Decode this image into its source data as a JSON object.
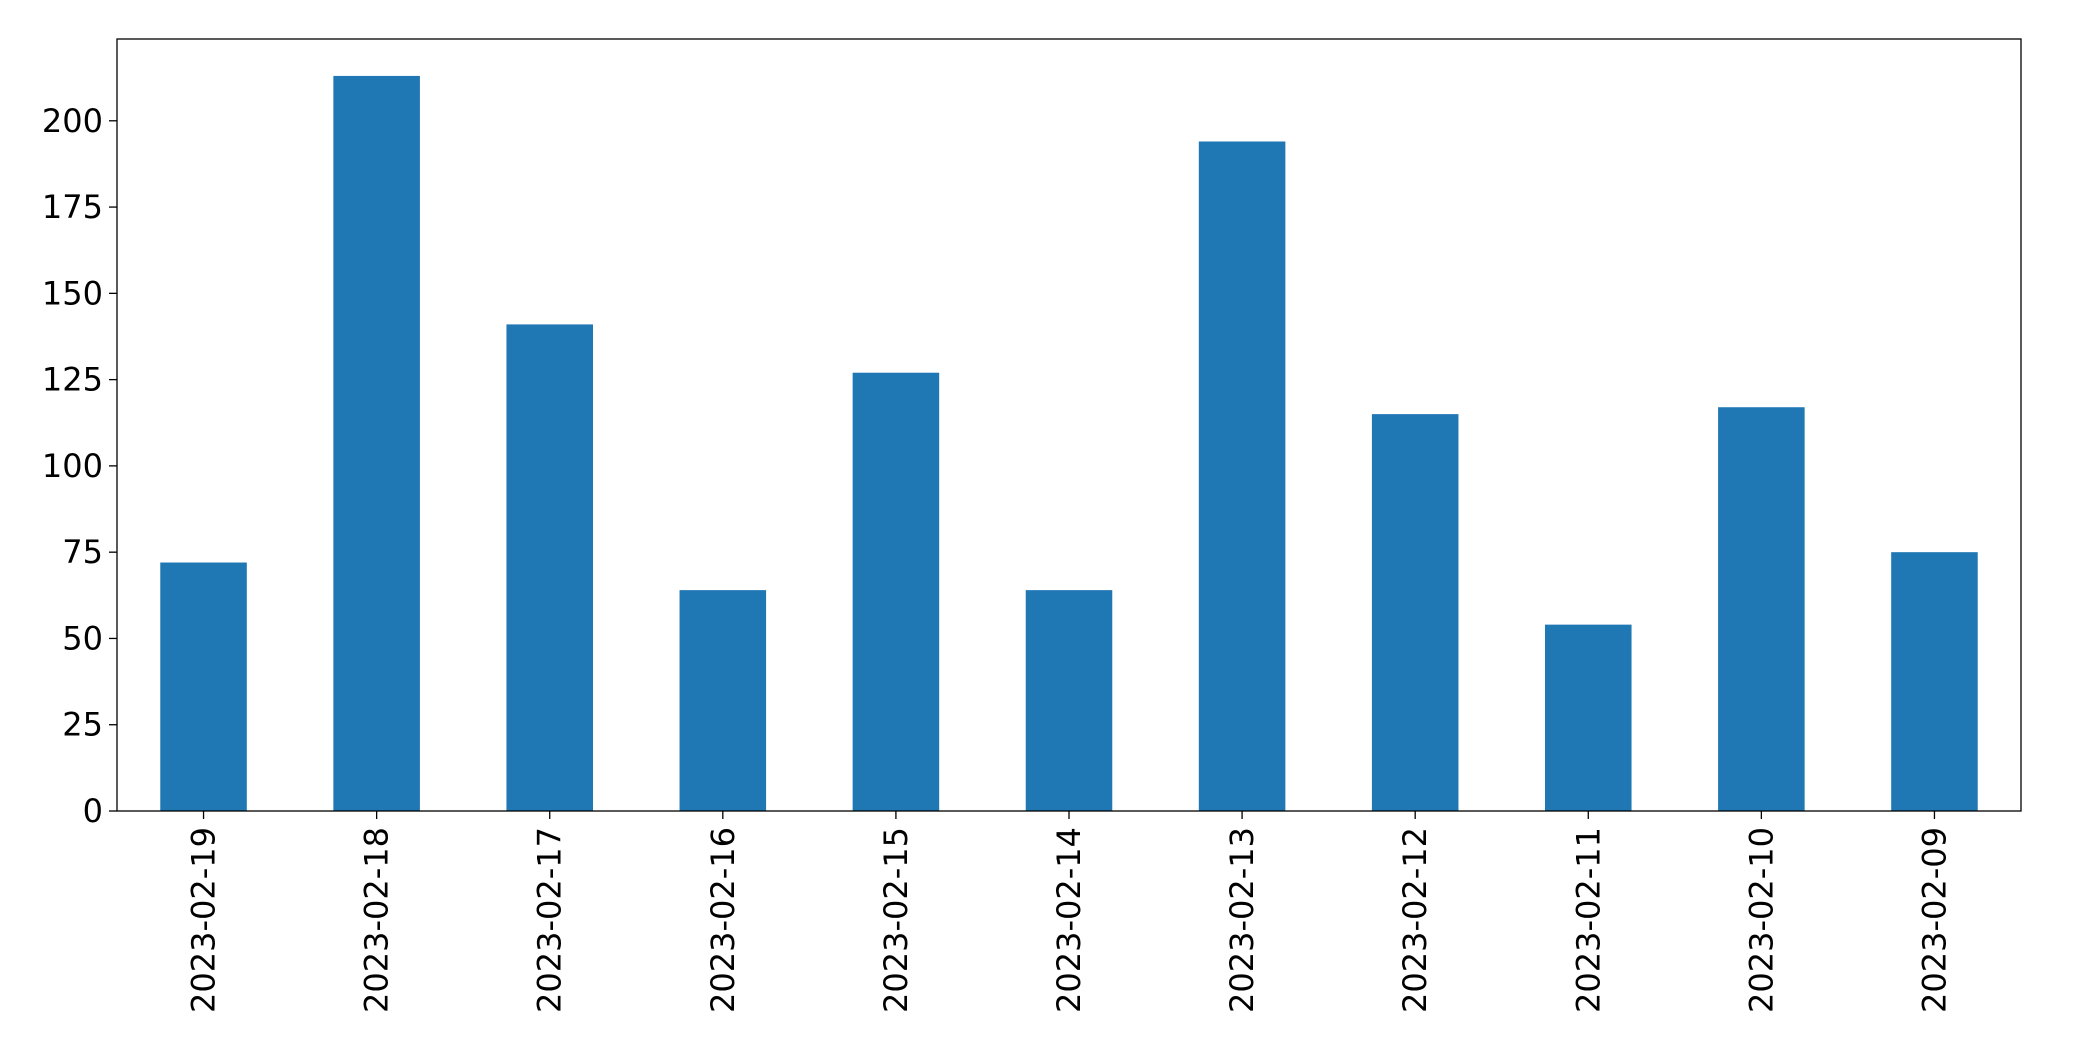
{
  "chart_data": {
    "type": "bar",
    "title": "",
    "xlabel": "",
    "ylabel": "",
    "categories": [
      "2023-02-19",
      "2023-02-18",
      "2023-02-17",
      "2023-02-16",
      "2023-02-15",
      "2023-02-14",
      "2023-02-13",
      "2023-02-12",
      "2023-02-11",
      "2023-02-10",
      "2023-02-09"
    ],
    "values": [
      72,
      213,
      141,
      64,
      127,
      64,
      194,
      115,
      54,
      117,
      75
    ],
    "ylim": [
      0,
      223.7
    ],
    "yticks": [
      0,
      25,
      50,
      75,
      100,
      125,
      150,
      175,
      200
    ],
    "x_tick_rotation": 90,
    "grid": false,
    "legend": "none",
    "bar_color": "#1f77b4"
  }
}
